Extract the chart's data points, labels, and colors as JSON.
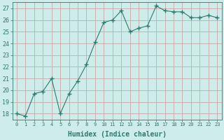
{
  "x": [
    0,
    1,
    2,
    3,
    4,
    5,
    6,
    7,
    8,
    9,
    10,
    11,
    12,
    13,
    14,
    15,
    16,
    17,
    18,
    19,
    20,
    21,
    22,
    23
  ],
  "y": [
    18.0,
    17.8,
    19.7,
    19.9,
    21.0,
    18.0,
    19.7,
    20.8,
    22.2,
    24.1,
    25.8,
    26.0,
    26.8,
    25.0,
    25.3,
    25.5,
    27.2,
    26.8,
    26.7,
    26.7,
    26.2,
    26.2,
    26.4,
    26.2
  ],
  "line_color": "#2d7a6e",
  "marker": "+",
  "marker_size": 4,
  "bg_color": "#cdecea",
  "grid_color": "#c8a8a8",
  "xlabel": "Humidex (Indice chaleur)",
  "ylabel_ticks": [
    18,
    19,
    20,
    21,
    22,
    23,
    24,
    25,
    26,
    27
  ],
  "xlim": [
    -0.5,
    23.5
  ],
  "ylim": [
    17.5,
    27.5
  ],
  "xlabel_fontsize": 7,
  "ytick_fontsize": 6,
  "xtick_fontsize": 5
}
